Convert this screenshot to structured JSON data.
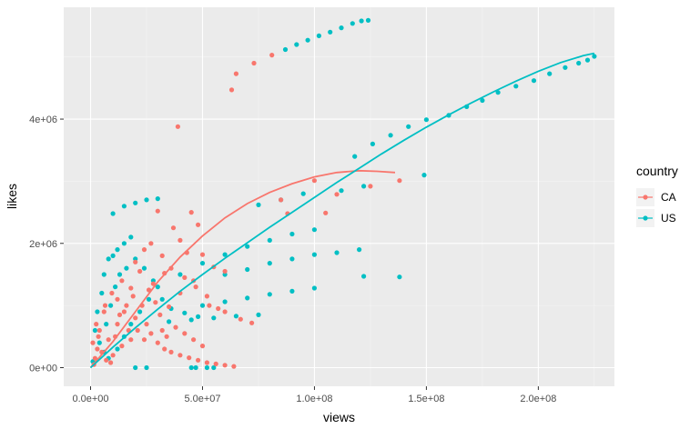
{
  "chart_data": {
    "type": "scatter",
    "xlabel": "views",
    "ylabel": "likes",
    "xlim": [
      -12000000,
      234000000
    ],
    "ylim": [
      -300000,
      5800000
    ],
    "x_ticks": [
      {
        "value": 0,
        "label": "0.0e+00"
      },
      {
        "value": 50000000,
        "label": "5.0e+07"
      },
      {
        "value": 100000000,
        "label": "1.0e+08"
      },
      {
        "value": 150000000,
        "label": "1.5e+08"
      },
      {
        "value": 200000000,
        "label": "2.0e+08"
      }
    ],
    "y_ticks": [
      {
        "value": 0,
        "label": "0e+00"
      },
      {
        "value": 2000000,
        "label": "2e+06"
      },
      {
        "value": 4000000,
        "label": "4e+06"
      }
    ],
    "grid": true,
    "legend": {
      "title": "country",
      "position": "right",
      "entries": [
        {
          "name": "CA",
          "color": "#F8766D"
        },
        {
          "name": "US",
          "color": "#00BFC4"
        }
      ]
    },
    "series": [
      {
        "name": "CA",
        "color": "#F8766D",
        "points": [
          [
            63000000,
            4470000
          ],
          [
            65000000,
            4730000
          ],
          [
            73000000,
            4900000
          ],
          [
            81000000,
            5030000
          ],
          [
            39000000,
            3880000
          ],
          [
            100000000,
            3010000
          ],
          [
            125000000,
            2920000
          ],
          [
            138000000,
            3010000
          ],
          [
            110000000,
            2790000
          ],
          [
            105000000,
            2490000
          ],
          [
            88000000,
            2480000
          ],
          [
            85000000,
            2700000
          ],
          [
            45000000,
            2500000
          ],
          [
            48000000,
            2300000
          ],
          [
            40000000,
            2050000
          ],
          [
            30000000,
            2520000
          ],
          [
            37000000,
            2250000
          ],
          [
            43000000,
            1850000
          ],
          [
            50000000,
            1820000
          ],
          [
            55000000,
            1620000
          ],
          [
            60000000,
            1550000
          ],
          [
            33000000,
            1520000
          ],
          [
            46000000,
            1400000
          ],
          [
            40000000,
            1200000
          ],
          [
            53000000,
            1000000
          ],
          [
            60000000,
            900000
          ],
          [
            67000000,
            780000
          ],
          [
            72000000,
            720000
          ],
          [
            35000000,
            980000
          ],
          [
            28000000,
            1350000
          ],
          [
            22000000,
            1550000
          ],
          [
            18000000,
            1280000
          ],
          [
            12000000,
            1100000
          ],
          [
            6000000,
            900000
          ],
          [
            4000000,
            600000
          ],
          [
            3000000,
            300000
          ],
          [
            8000000,
            450000
          ],
          [
            12000000,
            700000
          ],
          [
            15000000,
            900000
          ],
          [
            17000000,
            600000
          ],
          [
            20000000,
            800000
          ],
          [
            23000000,
            1000000
          ],
          [
            25000000,
            700000
          ],
          [
            27000000,
            550000
          ],
          [
            30000000,
            400000
          ],
          [
            33000000,
            300000
          ],
          [
            36000000,
            250000
          ],
          [
            40000000,
            200000
          ],
          [
            44000000,
            160000
          ],
          [
            48000000,
            120000
          ],
          [
            52000000,
            80000
          ],
          [
            56000000,
            60000
          ],
          [
            60000000,
            40000
          ],
          [
            64000000,
            20000
          ],
          [
            10000000,
            200000
          ],
          [
            14000000,
            350000
          ],
          [
            18000000,
            450000
          ],
          [
            21000000,
            600000
          ],
          [
            24000000,
            450000
          ],
          [
            2000000,
            150000
          ],
          [
            5000000,
            250000
          ],
          [
            7000000,
            120000
          ],
          [
            9000000,
            80000
          ],
          [
            11000000,
            500000
          ],
          [
            13000000,
            850000
          ],
          [
            16000000,
            1000000
          ],
          [
            19000000,
            1150000
          ],
          [
            26000000,
            1250000
          ],
          [
            29000000,
            1050000
          ],
          [
            31000000,
            850000
          ],
          [
            32000000,
            600000
          ],
          [
            34000000,
            500000
          ],
          [
            38000000,
            650000
          ],
          [
            42000000,
            550000
          ],
          [
            46000000,
            450000
          ],
          [
            50000000,
            350000
          ],
          [
            1500000,
            50000
          ],
          [
            1000000,
            400000
          ],
          [
            2500000,
            700000
          ],
          [
            3500000,
            500000
          ],
          [
            6500000,
            1000000
          ],
          [
            9500000,
            1200000
          ],
          [
            14000000,
            1400000
          ],
          [
            20000000,
            1700000
          ],
          [
            24000000,
            1900000
          ],
          [
            27000000,
            2000000
          ],
          [
            32000000,
            1800000
          ],
          [
            36000000,
            1600000
          ],
          [
            42000000,
            1450000
          ],
          [
            47000000,
            1300000
          ],
          [
            52000000,
            1150000
          ],
          [
            57000000,
            950000
          ]
        ],
        "trend": [
          [
            0,
            0
          ],
          [
            10000000,
            420000
          ],
          [
            20000000,
            900000
          ],
          [
            30000000,
            1380000
          ],
          [
            40000000,
            1780000
          ],
          [
            50000000,
            2120000
          ],
          [
            60000000,
            2410000
          ],
          [
            70000000,
            2640000
          ],
          [
            80000000,
            2820000
          ],
          [
            90000000,
            2960000
          ],
          [
            100000000,
            3070000
          ],
          [
            110000000,
            3140000
          ],
          [
            120000000,
            3170000
          ],
          [
            128000000,
            3160000
          ],
          [
            136000000,
            3140000
          ]
        ]
      },
      {
        "name": "US",
        "color": "#00BFC4",
        "points": [
          [
            87000000,
            5120000
          ],
          [
            92000000,
            5200000
          ],
          [
            97000000,
            5270000
          ],
          [
            102000000,
            5340000
          ],
          [
            107000000,
            5400000
          ],
          [
            112000000,
            5470000
          ],
          [
            117000000,
            5540000
          ],
          [
            121000000,
            5580000
          ],
          [
            124000000,
            5590000
          ],
          [
            222000000,
            4950000
          ],
          [
            225000000,
            5010000
          ],
          [
            218000000,
            4900000
          ],
          [
            212000000,
            4830000
          ],
          [
            205000000,
            4730000
          ],
          [
            198000000,
            4620000
          ],
          [
            190000000,
            4530000
          ],
          [
            182000000,
            4430000
          ],
          [
            175000000,
            4300000
          ],
          [
            168000000,
            4200000
          ],
          [
            160000000,
            4060000
          ],
          [
            150000000,
            3990000
          ],
          [
            142000000,
            3880000
          ],
          [
            134000000,
            3740000
          ],
          [
            126000000,
            3600000
          ],
          [
            118000000,
            3400000
          ],
          [
            149000000,
            3100000
          ],
          [
            122000000,
            2920000
          ],
          [
            112000000,
            2850000
          ],
          [
            95000000,
            2800000
          ],
          [
            85000000,
            2700000
          ],
          [
            75000000,
            2620000
          ],
          [
            30000000,
            2720000
          ],
          [
            25000000,
            2700000
          ],
          [
            20000000,
            2650000
          ],
          [
            15000000,
            2600000
          ],
          [
            10000000,
            2480000
          ],
          [
            122000000,
            1470000
          ],
          [
            138000000,
            1460000
          ],
          [
            100000000,
            2220000
          ],
          [
            90000000,
            2150000
          ],
          [
            80000000,
            2050000
          ],
          [
            70000000,
            1950000
          ],
          [
            60000000,
            1820000
          ],
          [
            50000000,
            1680000
          ],
          [
            40000000,
            1500000
          ],
          [
            120000000,
            1900000
          ],
          [
            110000000,
            1850000
          ],
          [
            100000000,
            1820000
          ],
          [
            90000000,
            1750000
          ],
          [
            80000000,
            1680000
          ],
          [
            70000000,
            1580000
          ],
          [
            60000000,
            1500000
          ],
          [
            100000000,
            1280000
          ],
          [
            90000000,
            1230000
          ],
          [
            80000000,
            1180000
          ],
          [
            70000000,
            1120000
          ],
          [
            60000000,
            1060000
          ],
          [
            50000000,
            1000000
          ],
          [
            75000000,
            850000
          ],
          [
            65000000,
            830000
          ],
          [
            55000000,
            800000
          ],
          [
            45000000,
            770000
          ],
          [
            35000000,
            740000
          ],
          [
            45000000,
            0
          ],
          [
            47000000,
            0
          ],
          [
            52000000,
            0
          ],
          [
            55000000,
            0
          ],
          [
            20000000,
            0
          ],
          [
            25000000,
            0
          ],
          [
            5000000,
            1200000
          ],
          [
            6000000,
            1500000
          ],
          [
            8000000,
            1750000
          ],
          [
            10000000,
            1800000
          ],
          [
            12000000,
            1900000
          ],
          [
            15000000,
            2000000
          ],
          [
            18000000,
            2100000
          ],
          [
            3000000,
            900000
          ],
          [
            2000000,
            600000
          ],
          [
            4000000,
            400000
          ],
          [
            6000000,
            250000
          ],
          [
            8000000,
            150000
          ],
          [
            12000000,
            300000
          ],
          [
            15000000,
            500000
          ],
          [
            18000000,
            700000
          ],
          [
            22000000,
            900000
          ],
          [
            26000000,
            1100000
          ],
          [
            30000000,
            1300000
          ],
          [
            1000000,
            100000
          ],
          [
            7000000,
            700000
          ],
          [
            9000000,
            1000000
          ],
          [
            11000000,
            1300000
          ],
          [
            13000000,
            1500000
          ],
          [
            16000000,
            1600000
          ],
          [
            20000000,
            1750000
          ],
          [
            24000000,
            1600000
          ],
          [
            28000000,
            1400000
          ],
          [
            32000000,
            1100000
          ],
          [
            36000000,
            950000
          ],
          [
            42000000,
            880000
          ],
          [
            48000000,
            820000
          ]
        ],
        "trend": [
          [
            0,
            0
          ],
          [
            10000000,
            330000
          ],
          [
            20000000,
            640000
          ],
          [
            30000000,
            940000
          ],
          [
            40000000,
            1230000
          ],
          [
            50000000,
            1500000
          ],
          [
            60000000,
            1760000
          ],
          [
            70000000,
            2010000
          ],
          [
            80000000,
            2260000
          ],
          [
            90000000,
            2500000
          ],
          [
            100000000,
            2740000
          ],
          [
            110000000,
            2980000
          ],
          [
            120000000,
            3210000
          ],
          [
            130000000,
            3440000
          ],
          [
            140000000,
            3660000
          ],
          [
            150000000,
            3870000
          ],
          [
            160000000,
            4070000
          ],
          [
            170000000,
            4260000
          ],
          [
            180000000,
            4440000
          ],
          [
            190000000,
            4610000
          ],
          [
            200000000,
            4770000
          ],
          [
            210000000,
            4910000
          ],
          [
            220000000,
            5020000
          ],
          [
            225000000,
            5060000
          ]
        ]
      }
    ]
  }
}
